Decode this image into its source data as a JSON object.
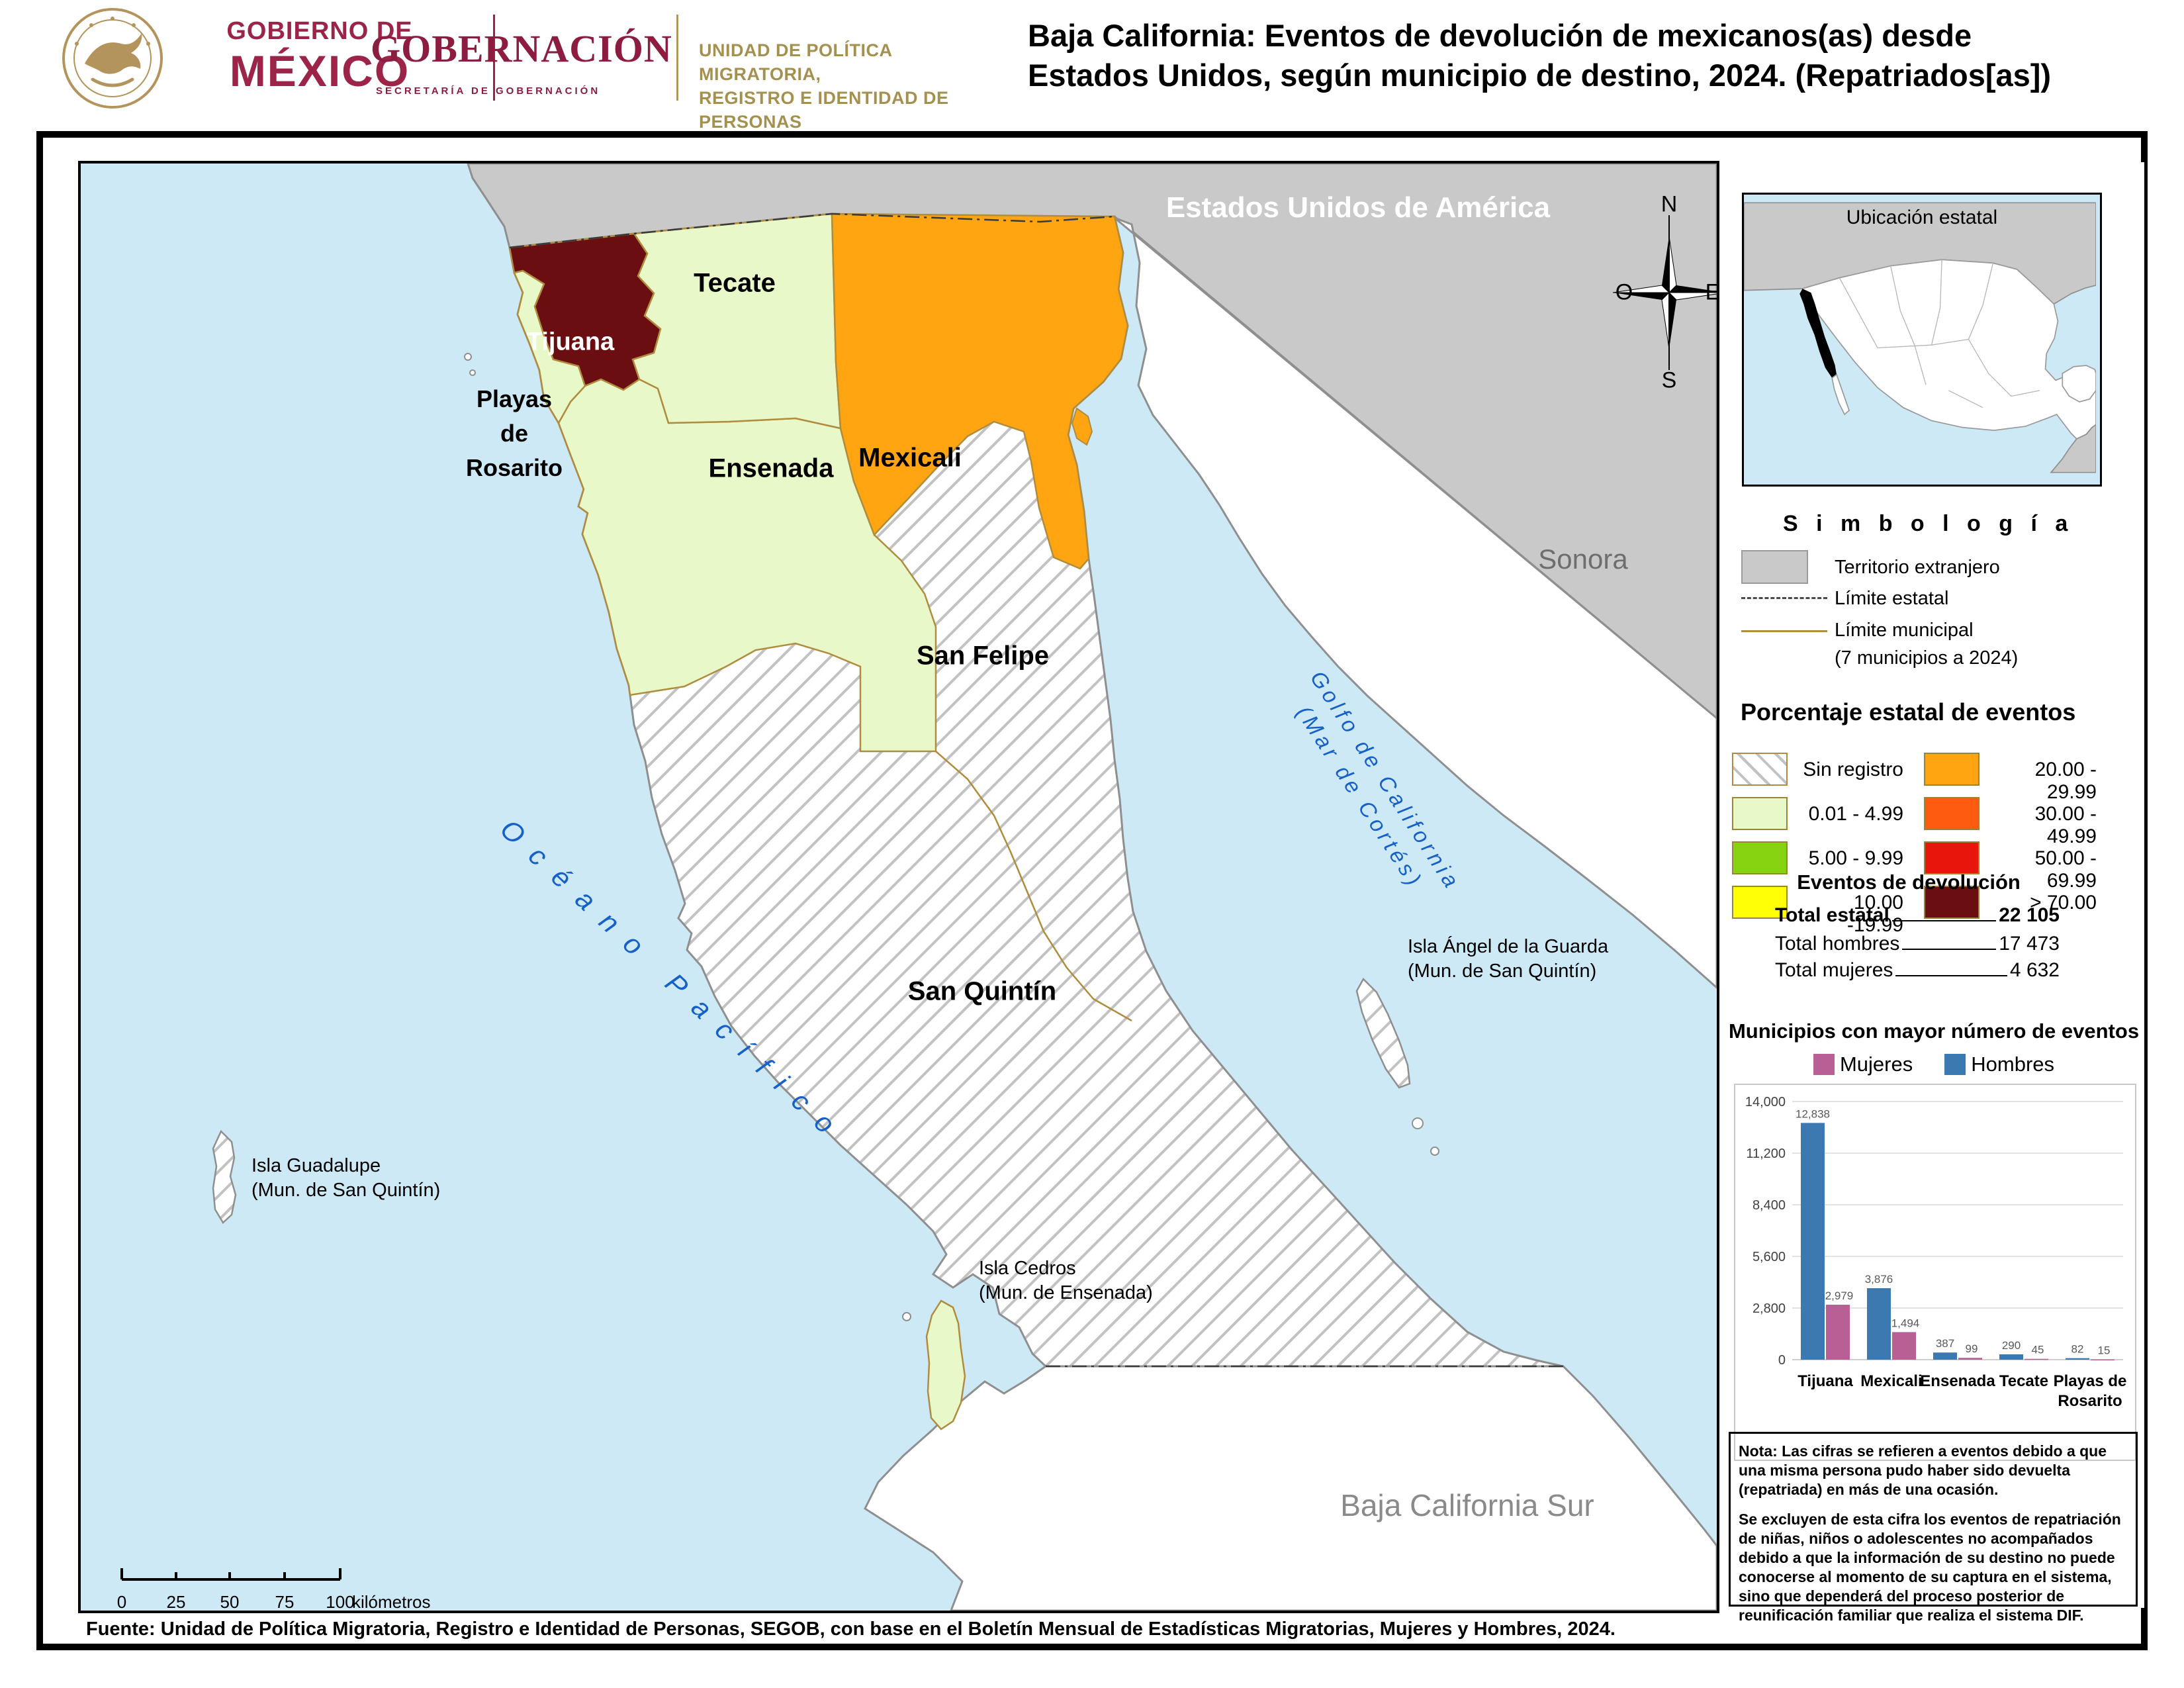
{
  "header": {
    "government_line1": "GOBIERNO DE",
    "government_line2": "MÉXICO",
    "secretariat_name": "GOBERNACIÓN",
    "secretariat_sub": "SECRETARÍA DE GOBERNACIÓN",
    "unit_line1": "UNIDAD DE POLÍTICA MIGRATORIA,",
    "unit_line2": "REGISTRO E IDENTIDAD DE PERSONAS",
    "title_line1": "Baja California: Eventos de devolución de mexicanos(as) desde",
    "title_line2": "Estados Unidos, según municipio de destino, 2024. (Repatriados[as])"
  },
  "map": {
    "labels": {
      "usa": "Estados Unidos de América",
      "sonora": "Sonora",
      "baja_california_sur": "Baja California Sur",
      "tijuana": "Tijuana",
      "tecate": "Tecate",
      "mexicali": "Mexicali",
      "ensenada": "Ensenada",
      "san_felipe": "San Felipe",
      "san_quintin": "San Quintín",
      "playas_l1": "Playas",
      "playas_l2": "de",
      "playas_l3": "Rosarito",
      "oceano": "Océano Pacífico",
      "golfo_l1": "Golfo de California",
      "golfo_l2": "(Mar de Cortés)",
      "isla_guadalupe_l1": "Isla Guadalupe",
      "isla_guadalupe_l2": "(Mun. de San Quintín)",
      "isla_cedros_l1": "Isla Cedros",
      "isla_cedros_l2": "(Mun. de Ensenada)",
      "isla_angel_l1": "Isla Ángel de la Guarda",
      "isla_angel_l2": "(Mun. de San Quintín)"
    },
    "compass": {
      "n": "N",
      "s": "S",
      "e": "E",
      "o": "O"
    },
    "scalebar": {
      "ticks": [
        "0",
        "25",
        "50",
        "75",
        "100"
      ],
      "unit": "kilómetros"
    }
  },
  "sidebar": {
    "inset_title": "Ubicación estatal",
    "symbology": {
      "title": "S i m b o l o g í a",
      "territorio": "Territorio extranjero",
      "limite_estatal": "Límite estatal",
      "limite_municipal": "Límite municipal",
      "limite_municipal_sub": "(7 municipios a 2024)"
    },
    "percent_legend": {
      "title": "Porcentaje estatal de eventos",
      "items": [
        {
          "label": "Sin registro",
          "color": "hatch"
        },
        {
          "label": "0.01  - 4.99",
          "color": "#e8f8c9"
        },
        {
          "label": "5.00  - 9.99",
          "color": "#86d411"
        },
        {
          "label": "10.00 -19.99",
          "color": "#ffff05"
        },
        {
          "label": "20.00 - 29.99",
          "color": "#ffa511"
        },
        {
          "label": "30.00 - 49.99",
          "color": "#fe5b10"
        },
        {
          "label": "50.00 - 69.99",
          "color": "#e8150d"
        },
        {
          "label": "> 70.00",
          "color": "#6b0e12"
        }
      ]
    },
    "stats": {
      "title": "Eventos de devolución",
      "row1_label": "Total estatal",
      "row1_value": "22 105",
      "row2_label": "Total hombres",
      "row2_value": "17 473",
      "row3_label": "Total mujeres",
      "row3_value": "4 632"
    },
    "chart_title": "Municipios con mayor número de eventos",
    "note_p1": "Nota: Las cifras se refieren a eventos debido a que una misma persona pudo haber sido devuelta (repatriada) en más de una ocasión.",
    "note_p2": "Se excluyen de esta cifra los eventos de repatriación de niñas, niños o adolescentes no acompañados debido a que la información de su destino no puede conocerse al momento de su captura en el sistema, sino que dependerá del proceso posterior de reunificación familiar que realiza el sistema DIF."
  },
  "chart_data": {
    "type": "bar",
    "title": "Municipios con mayor número de eventos",
    "categories": [
      "Tijuana",
      "Mexicali",
      "Ensenada",
      "Tecate",
      "Playas de Rosarito"
    ],
    "series": [
      {
        "name": "Hombres",
        "color": "#3c79b0",
        "values": [
          12838,
          3876,
          387,
          290,
          82
        ]
      },
      {
        "name": "Mujeres",
        "color": "#b85f95",
        "values": [
          2979,
          1494,
          99,
          45,
          15
        ]
      }
    ],
    "legend": [
      {
        "name": "Mujeres",
        "color": "#b85f95"
      },
      {
        "name": "Hombres",
        "color": "#3c79b0"
      }
    ],
    "ylim": [
      0,
      14000
    ],
    "yticks": [
      0,
      2800,
      5600,
      8400,
      11200,
      14000
    ],
    "grid": true,
    "value_labels": true,
    "legend_position": "top"
  },
  "footer": {
    "source": "Fuente: Unidad de Política Migratoria, Registro e Identidad de Personas, SEGOB, con base en el Boletín Mensual de Estadísticas Migratorias, Mujeres y Hombres, 2024."
  },
  "colors": {
    "brand_maroon": "#9d2449",
    "brand_gold": "#a5914f",
    "ocean": "#cde9f5",
    "foreign_gray": "#c9c9c9",
    "range_low_green": "#e8f8c9",
    "range_orange": "#ffa511",
    "range_dark": "#6b0e12",
    "municipal_line": "#b08c3e",
    "sea_text_blue": "#1660c8",
    "bar_hombres": "#3c79b0",
    "bar_mujeres": "#b85f95"
  }
}
